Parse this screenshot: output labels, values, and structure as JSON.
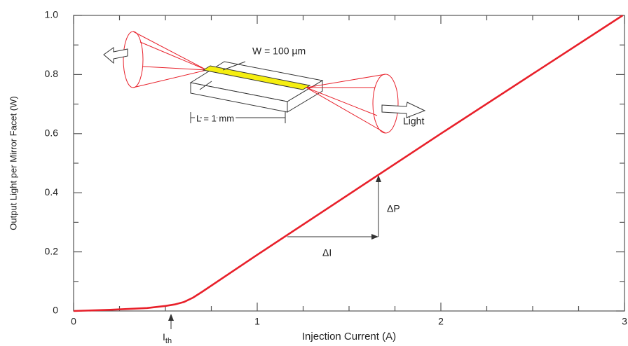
{
  "chart_data": {
    "type": "line",
    "xlabel": "Injection Current (A)",
    "ylabel": "Output Light per Mirror Facet (W)",
    "x": [
      0,
      0.2,
      0.4,
      0.5,
      0.55,
      0.6,
      0.65,
      0.7,
      1,
      2,
      2.99
    ],
    "values": [
      0,
      0.004,
      0.01,
      0.017,
      0.022,
      0.03,
      0.045,
      0.065,
      0.19,
      0.6,
      1.0
    ],
    "color": "#e8202a",
    "xlim": [
      0,
      3
    ],
    "xticks": [
      0,
      1,
      2,
      3
    ],
    "xminorticks": [
      0.25,
      0.5,
      0.75,
      1.25,
      1.5,
      1.75,
      2.25,
      2.5,
      2.75
    ],
    "ylim": [
      0,
      1
    ],
    "yticks": [
      0,
      0.2,
      0.4,
      0.6,
      0.8,
      {
        "value": 1,
        "label": "1.0"
      }
    ],
    "yminorticks": [
      0.1,
      0.3,
      0.5,
      0.7,
      0.9
    ],
    "annotations": {
      "width": "W = 100 µm",
      "length": "L = 1 mm",
      "light": "Light",
      "delta_p": "ΔP",
      "delta_i": "ΔI",
      "threshold": "I",
      "threshold_sub": "th"
    }
  }
}
